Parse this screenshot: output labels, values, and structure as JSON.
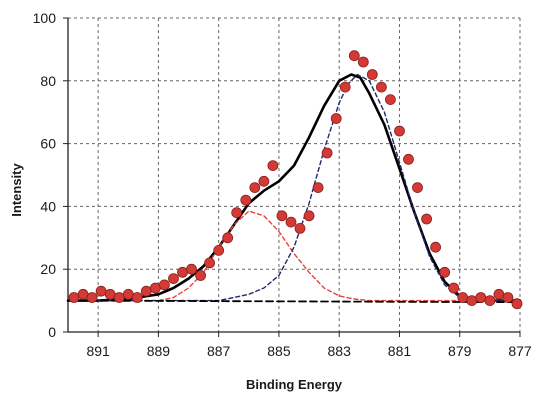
{
  "chart_data": {
    "type": "scatter",
    "xlabel": "Binding Energy",
    "ylabel": "Intensity",
    "xlim": [
      892,
      877
    ],
    "ylim": [
      0,
      100
    ],
    "x_reversed": true,
    "grid": true,
    "x_tick_labels": [
      "891",
      "889",
      "887",
      "885",
      "883",
      "881",
      "879",
      "877"
    ],
    "y_tick_labels": [
      "0",
      "20",
      "40",
      "60",
      "80",
      "100"
    ],
    "colors": {
      "points_fill": "#d43a35",
      "points_stroke": "#8a1f1c",
      "fit_line": "#000000",
      "peak_1": "#e8433d",
      "peak_2": "#1f2a6b",
      "baseline": "#000000",
      "grid": "#666666"
    },
    "series": [
      {
        "kind": "points",
        "x": [
          891.8,
          891.5,
          891.2,
          890.9,
          890.6,
          890.3,
          890.0,
          889.7,
          889.4,
          889.1,
          888.8,
          888.5,
          888.2,
          887.9,
          887.6,
          887.3,
          887.0,
          886.7,
          886.4,
          886.1,
          885.8,
          885.5,
          885.2,
          884.9,
          884.6,
          884.3,
          884.0,
          883.7,
          883.4,
          883.1,
          882.8,
          882.5,
          882.2,
          881.9,
          881.6,
          881.3,
          881.0,
          880.7,
          880.4,
          880.1,
          879.8,
          879.5,
          879.2,
          878.9,
          878.6,
          878.3,
          878.0,
          877.7,
          877.4,
          877.1
        ],
        "y": [
          11,
          12,
          11,
          13,
          12,
          11,
          12,
          11,
          13,
          14,
          15,
          17,
          19,
          20,
          18,
          22,
          26,
          30,
          38,
          42,
          46,
          48,
          53,
          37,
          35,
          33,
          37,
          46,
          57,
          68,
          78,
          88,
          86,
          82,
          78,
          74,
          64,
          55,
          46,
          36,
          27,
          19,
          14,
          11,
          10,
          11,
          10,
          12,
          11,
          9
        ]
      },
      {
        "kind": "line",
        "x": [
          892.0,
          891.0,
          890.0,
          889.0,
          888.5,
          888.0,
          887.5,
          887.0,
          886.5,
          886.0,
          885.5,
          885.0,
          884.5,
          884.0,
          883.5,
          883.0,
          882.6,
          882.3,
          882.0,
          881.5,
          881.0,
          880.5,
          880.0,
          879.5,
          879.0,
          878.5,
          878.0,
          877.0
        ],
        "y": [
          10,
          10,
          10.5,
          12,
          14,
          17,
          21,
          27,
          34,
          41,
          45,
          48,
          53,
          62,
          72,
          80,
          82,
          81,
          76,
          66,
          52,
          38,
          25,
          16,
          11.5,
          10.2,
          10,
          10
        ]
      },
      {
        "kind": "dashed",
        "x": [
          892.0,
          889.0,
          888.5,
          888.0,
          887.5,
          887.0,
          886.5,
          886.0,
          885.5,
          885.0,
          884.5,
          884.0,
          883.5,
          883.0,
          882.5,
          882.0,
          881.5,
          881.0,
          880.5,
          880.0,
          879.0,
          877.0
        ],
        "y": [
          10,
          10,
          11,
          14,
          19,
          27,
          34,
          38.5,
          37,
          32,
          25,
          19,
          14,
          11.5,
          10.5,
          10,
          10,
          10,
          10,
          10,
          10,
          10
        ]
      },
      {
        "kind": "dashed",
        "x": [
          892.0,
          887.0,
          886.5,
          886.0,
          885.5,
          885.0,
          884.5,
          884.0,
          883.5,
          883.0,
          882.7,
          882.4,
          882.0,
          881.5,
          881.0,
          880.5,
          880.0,
          879.5,
          879.0,
          878.5,
          877.0
        ],
        "y": [
          10,
          10,
          11,
          12,
          14,
          18,
          27,
          41,
          58,
          73,
          79,
          82,
          80,
          70,
          54,
          38,
          24,
          15,
          11,
          10,
          10
        ]
      },
      {
        "kind": "dashed",
        "x": [
          892.0,
          877.0
        ],
        "y": [
          10,
          9.5
        ]
      }
    ]
  }
}
